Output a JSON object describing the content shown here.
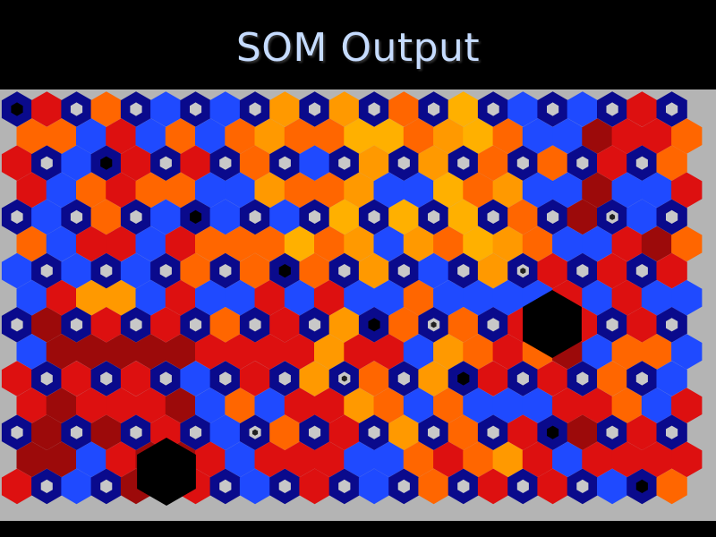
{
  "title": "SOM Output",
  "colors": {
    "navy": "#0a0a8c",
    "blue": "#1f4aff",
    "red": "#dd1010",
    "darkred": "#9c0a0a",
    "orange": "#ff6600",
    "lightorange": "#ff9900",
    "amber": "#ffb000",
    "node_gray": "#c8c8c8",
    "background": "#b4b4b4",
    "black": "#000000"
  },
  "chart_data": {
    "type": "heatmap",
    "description_kind": "self-organizing map u-matrix (hexagonal)",
    "rows": 15,
    "cols": 23,
    "legend": "none",
    "grid": false
  }
}
